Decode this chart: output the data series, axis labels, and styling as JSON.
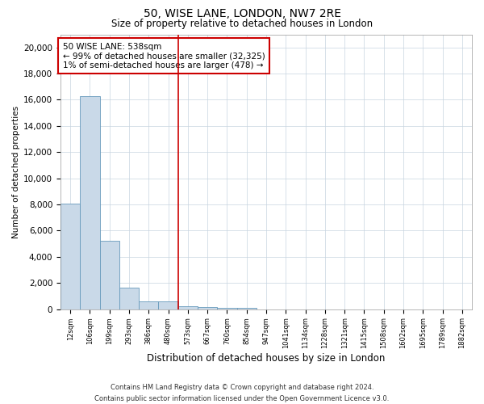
{
  "title1": "50, WISE LANE, LONDON, NW7 2RE",
  "title2": "Size of property relative to detached houses in London",
  "xlabel": "Distribution of detached houses by size in London",
  "ylabel": "Number of detached properties",
  "categories": [
    "12sqm",
    "106sqm",
    "199sqm",
    "293sqm",
    "386sqm",
    "480sqm",
    "573sqm",
    "667sqm",
    "760sqm",
    "854sqm",
    "947sqm",
    "1041sqm",
    "1134sqm",
    "1228sqm",
    "1321sqm",
    "1415sqm",
    "1508sqm",
    "1602sqm",
    "1695sqm",
    "1789sqm",
    "1882sqm"
  ],
  "values": [
    8050,
    16250,
    5200,
    1650,
    600,
    600,
    250,
    150,
    100,
    80,
    0,
    0,
    0,
    0,
    0,
    0,
    0,
    0,
    0,
    0,
    0
  ],
  "bar_color": "#c9d9e8",
  "bar_edge_color": "#6699bb",
  "vline_x": 5.5,
  "vline_color": "#cc0000",
  "annotation_line1": "50 WISE LANE: 538sqm",
  "annotation_line2": "← 99% of detached houses are smaller (32,325)",
  "annotation_line3": "1% of semi-detached houses are larger (478) →",
  "annotation_box_color": "#ffffff",
  "annotation_box_edge": "#cc0000",
  "ylim": [
    0,
    21000
  ],
  "yticks": [
    0,
    2000,
    4000,
    6000,
    8000,
    10000,
    12000,
    14000,
    16000,
    18000,
    20000
  ],
  "footer_line1": "Contains HM Land Registry data © Crown copyright and database right 2024.",
  "footer_line2": "Contains public sector information licensed under the Open Government Licence v3.0.",
  "bg_color": "#ffffff",
  "grid_color": "#c8d4e0",
  "title1_fontsize": 10,
  "title2_fontsize": 8.5,
  "xlabel_fontsize": 8.5,
  "ylabel_fontsize": 7.5,
  "xtick_fontsize": 6,
  "ytick_fontsize": 7.5,
  "footer_fontsize": 6,
  "annotation_fontsize": 7.5
}
